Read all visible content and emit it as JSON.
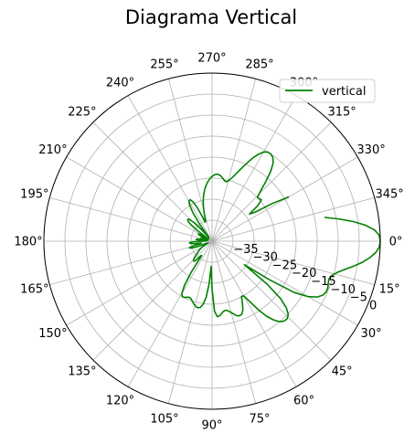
{
  "chart_data": {
    "type": "line",
    "projection": "polar",
    "title": "Diagrama Vertical",
    "theta_direction": "clockwise",
    "theta_zero": "right",
    "theta_ticks": [
      "0°",
      "15°",
      "30°",
      "45°",
      "60°",
      "75°",
      "90°",
      "105°",
      "120°",
      "135°",
      "150°",
      "165°",
      "180°",
      "195°",
      "210°",
      "225°",
      "240°",
      "255°",
      "270°",
      "285°",
      "300°",
      "315°",
      "330°",
      "345°"
    ],
    "theta_tick_values": [
      0,
      15,
      30,
      45,
      60,
      75,
      90,
      105,
      120,
      135,
      150,
      165,
      180,
      195,
      210,
      225,
      240,
      255,
      270,
      285,
      300,
      315,
      330,
      345
    ],
    "r_ticks": [
      "−35",
      "−30",
      "−25",
      "−20",
      "−15",
      "−10",
      "−5",
      "0"
    ],
    "r_tick_values": [
      -35,
      -30,
      -25,
      -20,
      -15,
      -10,
      -5,
      0
    ],
    "rlim": [
      -40,
      0
    ],
    "r_label_angle_deg": 22.5,
    "grid": true,
    "legend": {
      "position": "top-right",
      "entries": [
        "vertical"
      ]
    },
    "series": [
      {
        "name": "vertical",
        "color": "#008000",
        "theta_deg": [
          -12,
          -10,
          -8,
          -6,
          -4,
          -2,
          0,
          2,
          4,
          6,
          8,
          10,
          12,
          14,
          16,
          18,
          20,
          22,
          24,
          26,
          28,
          30,
          32,
          34,
          36,
          38,
          40,
          42,
          44,
          46,
          48,
          50,
          52,
          54,
          56,
          58,
          60,
          62,
          64,
          66,
          68,
          70,
          72,
          74,
          76,
          78,
          80,
          82,
          84,
          86,
          88,
          90,
          92,
          94,
          96,
          98,
          100,
          102,
          104,
          106,
          108,
          110,
          112,
          114,
          116,
          118,
          120,
          122,
          124,
          126,
          128,
          130,
          132,
          134,
          136,
          138,
          140,
          142,
          144,
          146,
          148,
          150,
          152,
          154,
          156,
          158,
          160,
          162,
          164,
          166,
          168,
          170,
          172,
          174,
          176,
          178,
          180,
          182,
          184,
          186,
          188,
          190,
          192,
          194,
          196,
          198,
          200,
          202,
          204,
          206,
          208,
          210,
          212,
          214,
          216,
          218,
          220,
          222,
          224,
          226,
          228,
          230,
          232,
          234,
          236,
          238,
          240,
          242,
          244,
          246,
          248,
          250,
          252,
          254,
          256,
          258,
          260,
          262,
          264,
          266,
          268,
          270,
          272,
          274,
          276,
          278,
          280,
          282,
          284,
          286,
          288,
          290,
          292,
          294,
          296,
          298,
          300,
          302,
          304,
          306,
          308,
          310,
          312,
          314,
          316,
          318,
          320,
          322,
          324,
          326,
          328,
          330,
          332,
          334,
          336,
          338,
          340,
          342,
          344,
          346,
          348
        ],
        "r_db": [
          -12.7,
          -9.5,
          -6.2,
          -3.4,
          -1.3,
          -0.2,
          0.0,
          -0.2,
          -1.0,
          -2.3,
          -3.9,
          -5.8,
          -7.7,
          -9.3,
          -10.4,
          -10.8,
          -10.6,
          -10.3,
          -10.3,
          -10.7,
          -11.7,
          -13.6,
          -17.0,
          -23.8,
          -30.5,
          -23.4,
          -18.7,
          -16.2,
          -14.8,
          -14.3,
          -14.4,
          -15.0,
          -16.2,
          -17.9,
          -20.3,
          -23.0,
          -25.0,
          -25.1,
          -23.5,
          -22.0,
          -21.2,
          -21.1,
          -21.4,
          -22.1,
          -22.7,
          -23.2,
          -23.2,
          -22.8,
          -22.2,
          -22.0,
          -23.3,
          -28.6,
          -34.0,
          -29.8,
          -26.6,
          -24.9,
          -24.0,
          -23.8,
          -24.0,
          -24.4,
          -24.9,
          -25.4,
          -25.6,
          -25.4,
          -25.1,
          -25.0,
          -25.6,
          -27.6,
          -31.4,
          -35.8,
          -35.6,
          -34.2,
          -33.6,
          -33.6,
          -34.0,
          -34.6,
          -35.2,
          -35.7,
          -36.1,
          -36.5,
          -37.0,
          -37.6,
          -38.2,
          -38.8,
          -39.0,
          -37.8,
          -35.8,
          -34.6,
          -34.4,
          -35.4,
          -37.2,
          -37.4,
          -35.8,
          -34.8,
          -34.6,
          -35.4,
          -37.6,
          -38.6,
          -37.0,
          -36.2,
          -36.3,
          -37.6,
          -39.0,
          -38.0,
          -37.3,
          -37.6,
          -38.6,
          -38.4,
          -37.2,
          -36.4,
          -36.3,
          -37.2,
          -39.0,
          -38.2,
          -35.6,
          -33.6,
          -32.5,
          -32.2,
          -32.6,
          -33.8,
          -36.0,
          -38.8,
          -38.2,
          -34.8,
          -31.9,
          -30.0,
          -29.0,
          -28.8,
          -29.5,
          -31.0,
          -33.4,
          -35.2,
          -35.0,
          -33.3,
          -31.5,
          -29.9,
          -28.6,
          -27.5,
          -26.6,
          -25.8,
          -25.1,
          -24.6,
          -24.2,
          -24.0,
          -24.1,
          -24.4,
          -24.9,
          -25.4,
          -25.4,
          -24.8,
          -23.9,
          -22.7,
          -21.3,
          -19.7,
          -18.0,
          -16.6,
          -15.5,
          -15.0,
          -15.0,
          -15.4,
          -16.4,
          -18.3,
          -20.9,
          -23.4,
          -25.0,
          -24.9,
          -24.7,
          -26.1,
          -29.0,
          -27.6,
          -23.0,
          -18.9
        ]
      }
    ]
  }
}
